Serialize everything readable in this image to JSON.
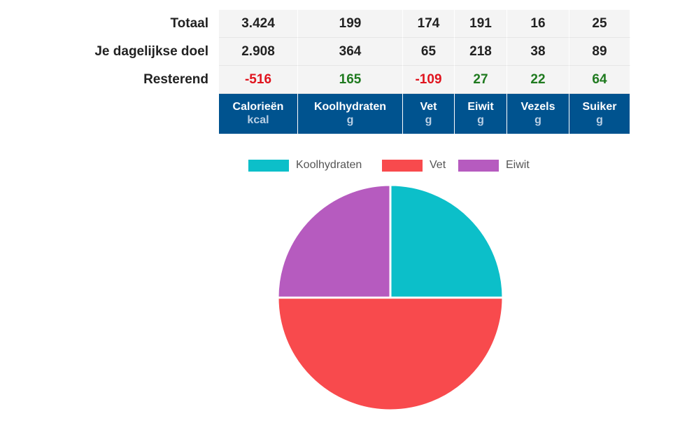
{
  "table": {
    "rows": [
      {
        "label": "Totaal",
        "values": [
          "3.424",
          "199",
          "174",
          "191",
          "16",
          "25"
        ]
      },
      {
        "label": "Je dagelijkse doel",
        "values": [
          "2.908",
          "364",
          "65",
          "218",
          "38",
          "89"
        ]
      },
      {
        "label": "Resterend",
        "values": [
          "-516",
          "165",
          "-109",
          "27",
          "22",
          "64"
        ]
      }
    ],
    "columns": [
      {
        "name": "Calorieën",
        "unit": "kcal"
      },
      {
        "name": "Koolhydraten",
        "unit": "g"
      },
      {
        "name": "Vet",
        "unit": "g"
      },
      {
        "name": "Eiwit",
        "unit": "g"
      },
      {
        "name": "Vezels",
        "unit": "g"
      },
      {
        "name": "Suiker",
        "unit": "g"
      }
    ],
    "colors": {
      "header": "#00538f",
      "negative": "#e0141e",
      "positive": "#1f7a1f"
    }
  },
  "chart_data": {
    "type": "pie",
    "legend_position": "top",
    "categories": [
      "Koolhydraten",
      "Vet",
      "Eiwit"
    ],
    "values": [
      25,
      50,
      25
    ],
    "colors": [
      "#0cbfc9",
      "#f84a4d",
      "#b65bbf"
    ]
  }
}
